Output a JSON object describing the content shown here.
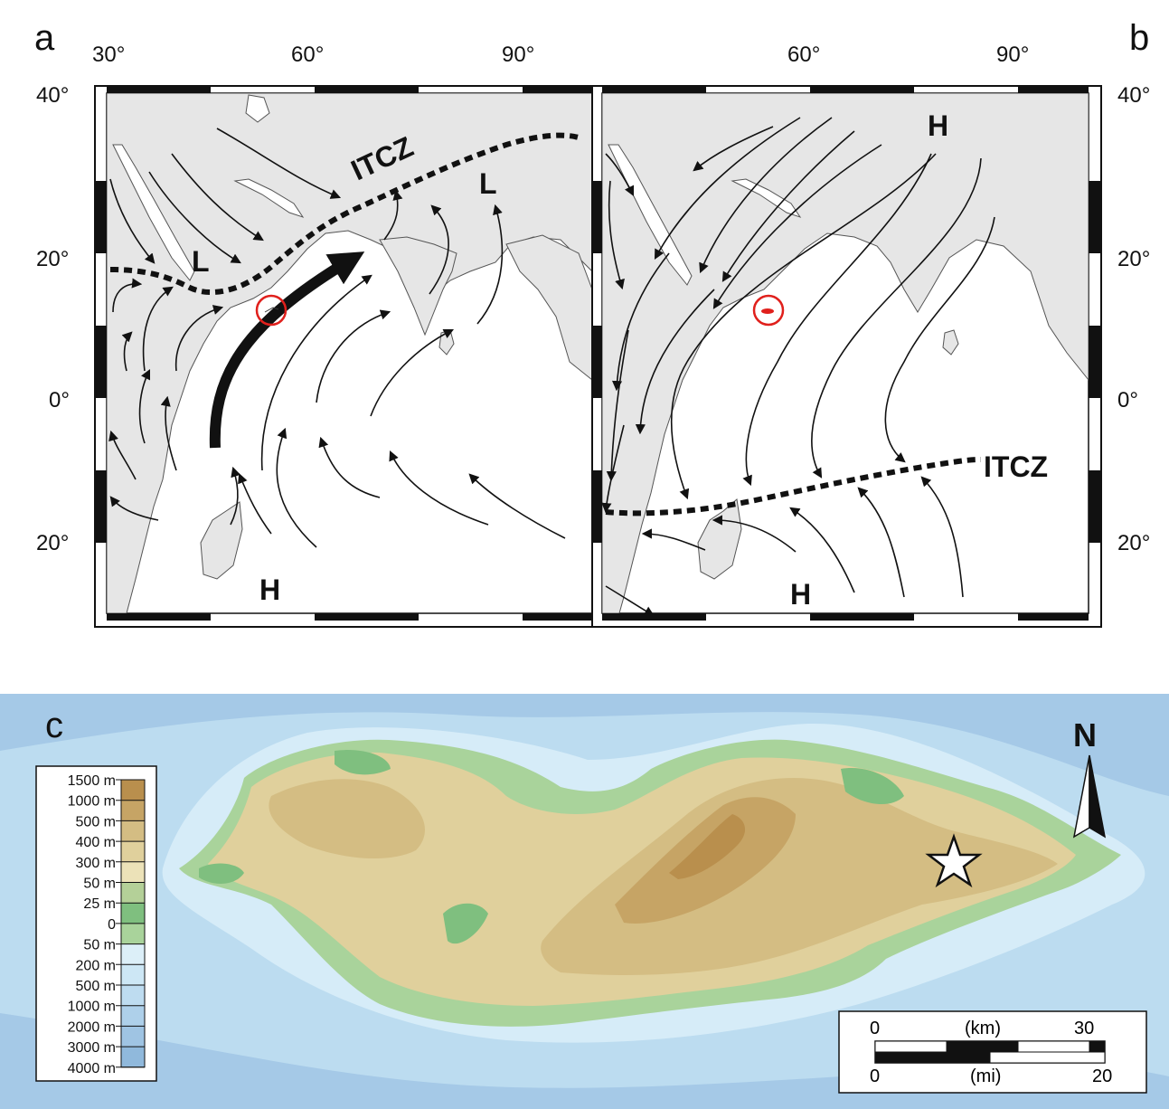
{
  "panels": {
    "a": "a",
    "b": "b",
    "c": "c"
  },
  "axes": {
    "top_a": [
      "30°",
      "60°",
      "90°"
    ],
    "top_b": [
      "60°",
      "90°"
    ],
    "left_a": [
      "40°",
      "20°",
      "0°",
      "20°"
    ],
    "right_b": [
      "40°",
      "20°",
      "0°",
      "20°"
    ]
  },
  "map_a": {
    "itcz": "ITCZ",
    "lows": [
      "L",
      "L"
    ],
    "high": "H"
  },
  "map_b": {
    "itcz": "ITCZ",
    "highs": [
      "H",
      "H"
    ]
  },
  "legend": {
    "elevation_levels": [
      "1500 m",
      "1000 m",
      "500 m",
      "400 m",
      "300 m",
      "50 m",
      "25 m",
      "0",
      "50 m",
      "200 m",
      "500 m",
      "1000 m",
      "2000 m",
      "3000 m",
      "4000 m"
    ],
    "swatch_colors": [
      "#b98f4d",
      "#c6a465",
      "#d4bd83",
      "#e0d09c",
      "#ece2b8",
      "#b4d098",
      "#7fbf7f",
      "#a9d39b",
      "#dceff8",
      "#cde7f5",
      "#bedcf0",
      "#aed0ea",
      "#9fc4e3",
      "#90b9dc",
      "#82acd4"
    ]
  },
  "north_arrow": {
    "label": "N"
  },
  "scale_bar": {
    "km_left": "0",
    "km_unit": "(km)",
    "km_right": "30",
    "mi_left": "0",
    "mi_unit": "(mi)",
    "mi_right": "20"
  },
  "colors": {
    "land_gray": "#e6e6e6",
    "sea_white": "#ffffff",
    "target_circle": "#e0201c",
    "ocean_light": "#d8edf8",
    "ocean_mid": "#b5d7ef",
    "ocean_deep": "#9dc4e6"
  }
}
